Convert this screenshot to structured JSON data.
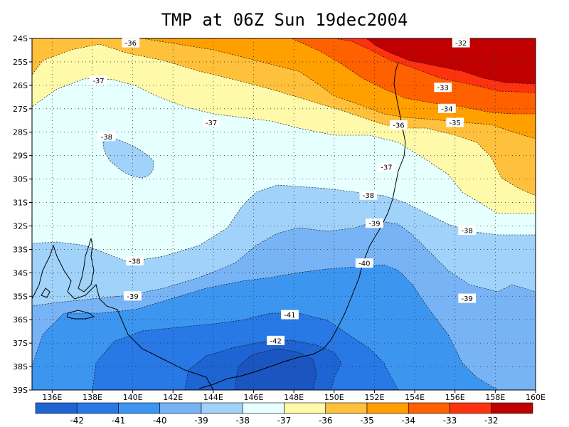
{
  "title": "TMP at 06Z Sun 19dec2004",
  "map": {
    "lat_ticks": [
      "24S",
      "25S",
      "26S",
      "27S",
      "28S",
      "29S",
      "30S",
      "31S",
      "32S",
      "33S",
      "34S",
      "35S",
      "36S",
      "37S",
      "38S",
      "39S"
    ],
    "lon_ticks": [
      "136E",
      "138E",
      "140E",
      "142E",
      "144E",
      "146E",
      "148E",
      "150E",
      "152E",
      "154E",
      "156E",
      "158E",
      "160E"
    ],
    "lon_range": [
      135,
      160
    ],
    "lat_range": [
      -39,
      -24
    ],
    "grid": "dotted",
    "contour_labels": [
      {
        "text": "-36",
        "lon": 139.9,
        "lat": -24.2
      },
      {
        "text": "-32",
        "lon": 156.3,
        "lat": -24.2
      },
      {
        "text": "-37",
        "lon": 138.3,
        "lat": -25.8
      },
      {
        "text": "-33",
        "lon": 155.4,
        "lat": -26.1
      },
      {
        "text": "-34",
        "lon": 155.6,
        "lat": -27.0
      },
      {
        "text": "-37",
        "lon": 143.9,
        "lat": -27.6
      },
      {
        "text": "-36",
        "lon": 153.2,
        "lat": -27.7
      },
      {
        "text": "-35",
        "lon": 156.0,
        "lat": -27.6
      },
      {
        "text": "-38",
        "lon": 138.7,
        "lat": -28.2
      },
      {
        "text": "-37",
        "lon": 152.6,
        "lat": -29.5
      },
      {
        "text": "-38",
        "lon": 151.7,
        "lat": -30.7
      },
      {
        "text": "-39",
        "lon": 152.0,
        "lat": -31.9
      },
      {
        "text": "-38",
        "lon": 156.6,
        "lat": -32.2
      },
      {
        "text": "-38",
        "lon": 140.1,
        "lat": -33.5
      },
      {
        "text": "-40",
        "lon": 151.5,
        "lat": -33.6
      },
      {
        "text": "-39",
        "lon": 140.0,
        "lat": -35.0
      },
      {
        "text": "-39",
        "lon": 156.6,
        "lat": -35.1
      },
      {
        "text": "-41",
        "lon": 147.8,
        "lat": -35.8
      },
      {
        "text": "-42",
        "lon": 147.1,
        "lat": -36.9
      }
    ]
  },
  "colorbar": {
    "labels": [
      "-42",
      "-41",
      "-40",
      "-39",
      "-38",
      "-37",
      "-36",
      "-35",
      "-34",
      "-33",
      "-32"
    ],
    "colors": [
      "#1e64d2",
      "#2878e6",
      "#3c96f0",
      "#78b4f5",
      "#a0d2fa",
      "#e6ffff",
      "#fffaaa",
      "#ffc03c",
      "#ffa000",
      "#ff6000",
      "#ff3210",
      "#c00000"
    ]
  }
}
